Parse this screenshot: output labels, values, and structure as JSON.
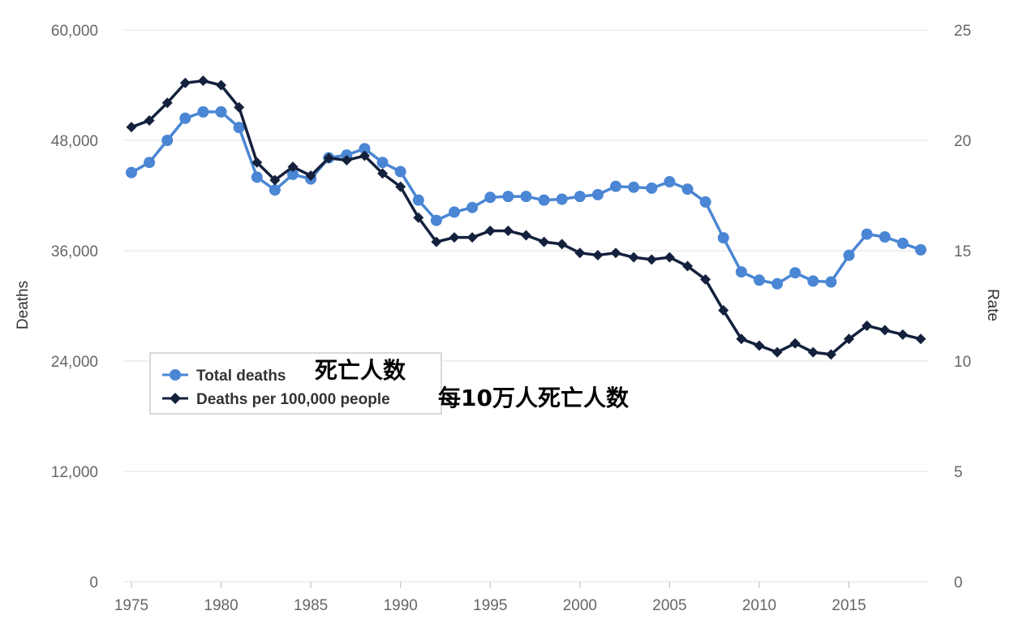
{
  "chart_data": {
    "type": "line",
    "title": "",
    "xlabel": "",
    "ylabel": "Deaths",
    "y2label": "Rate",
    "x": [
      1975,
      1976,
      1977,
      1978,
      1979,
      1980,
      1981,
      1982,
      1983,
      1984,
      1985,
      1986,
      1987,
      1988,
      1989,
      1990,
      1991,
      1992,
      1993,
      1994,
      1995,
      1996,
      1997,
      1998,
      1999,
      2000,
      2001,
      2002,
      2003,
      2004,
      2005,
      2006,
      2007,
      2008,
      2009,
      2010,
      2011,
      2012,
      2013,
      2014,
      2015,
      2016,
      2017,
      2018,
      2019
    ],
    "xlim": [
      1975,
      2019
    ],
    "xticks": [
      "1975",
      "1980",
      "1985",
      "1990",
      "1995",
      "2000",
      "2005",
      "2010",
      "2015"
    ],
    "ylim": [
      0,
      60000
    ],
    "yticks": [
      "0",
      "12,000",
      "24,000",
      "36,000",
      "48,000",
      "60,000"
    ],
    "y2lim": [
      0,
      25
    ],
    "y2ticks": [
      "0",
      "5",
      "10",
      "15",
      "20",
      "25"
    ],
    "grid": true,
    "legend_position": "lower-left",
    "series": [
      {
        "name": "Total deaths",
        "axis": "left",
        "color": "#4a86d4",
        "marker": "circle",
        "values": [
          44500,
          45600,
          48000,
          50400,
          51100,
          51100,
          49400,
          44000,
          42600,
          44300,
          43800,
          46100,
          46400,
          47100,
          45600,
          44600,
          41500,
          39300,
          40200,
          40700,
          41800,
          41900,
          41900,
          41500,
          41600,
          41900,
          42100,
          43000,
          42900,
          42800,
          43500,
          42700,
          41300,
          37400,
          33700,
          32800,
          32400,
          33600,
          32700,
          32600,
          35500,
          37800,
          37500,
          36800,
          36100
        ]
      },
      {
        "name": "Deaths per 100,000 people",
        "axis": "right",
        "color": "#14213d",
        "marker": "diamond",
        "values": [
          20.6,
          20.9,
          21.7,
          22.6,
          22.7,
          22.5,
          21.5,
          19.0,
          18.2,
          18.8,
          18.4,
          19.2,
          19.1,
          19.3,
          18.5,
          17.9,
          16.5,
          15.4,
          15.6,
          15.6,
          15.9,
          15.9,
          15.7,
          15.4,
          15.3,
          14.9,
          14.8,
          14.9,
          14.7,
          14.6,
          14.7,
          14.3,
          13.7,
          12.3,
          11.0,
          10.7,
          10.4,
          10.8,
          10.4,
          10.3,
          11.0,
          11.6,
          11.4,
          11.2,
          11.0
        ]
      }
    ],
    "annotations": [
      "死亡人数",
      "每10万人死亡人数"
    ]
  }
}
